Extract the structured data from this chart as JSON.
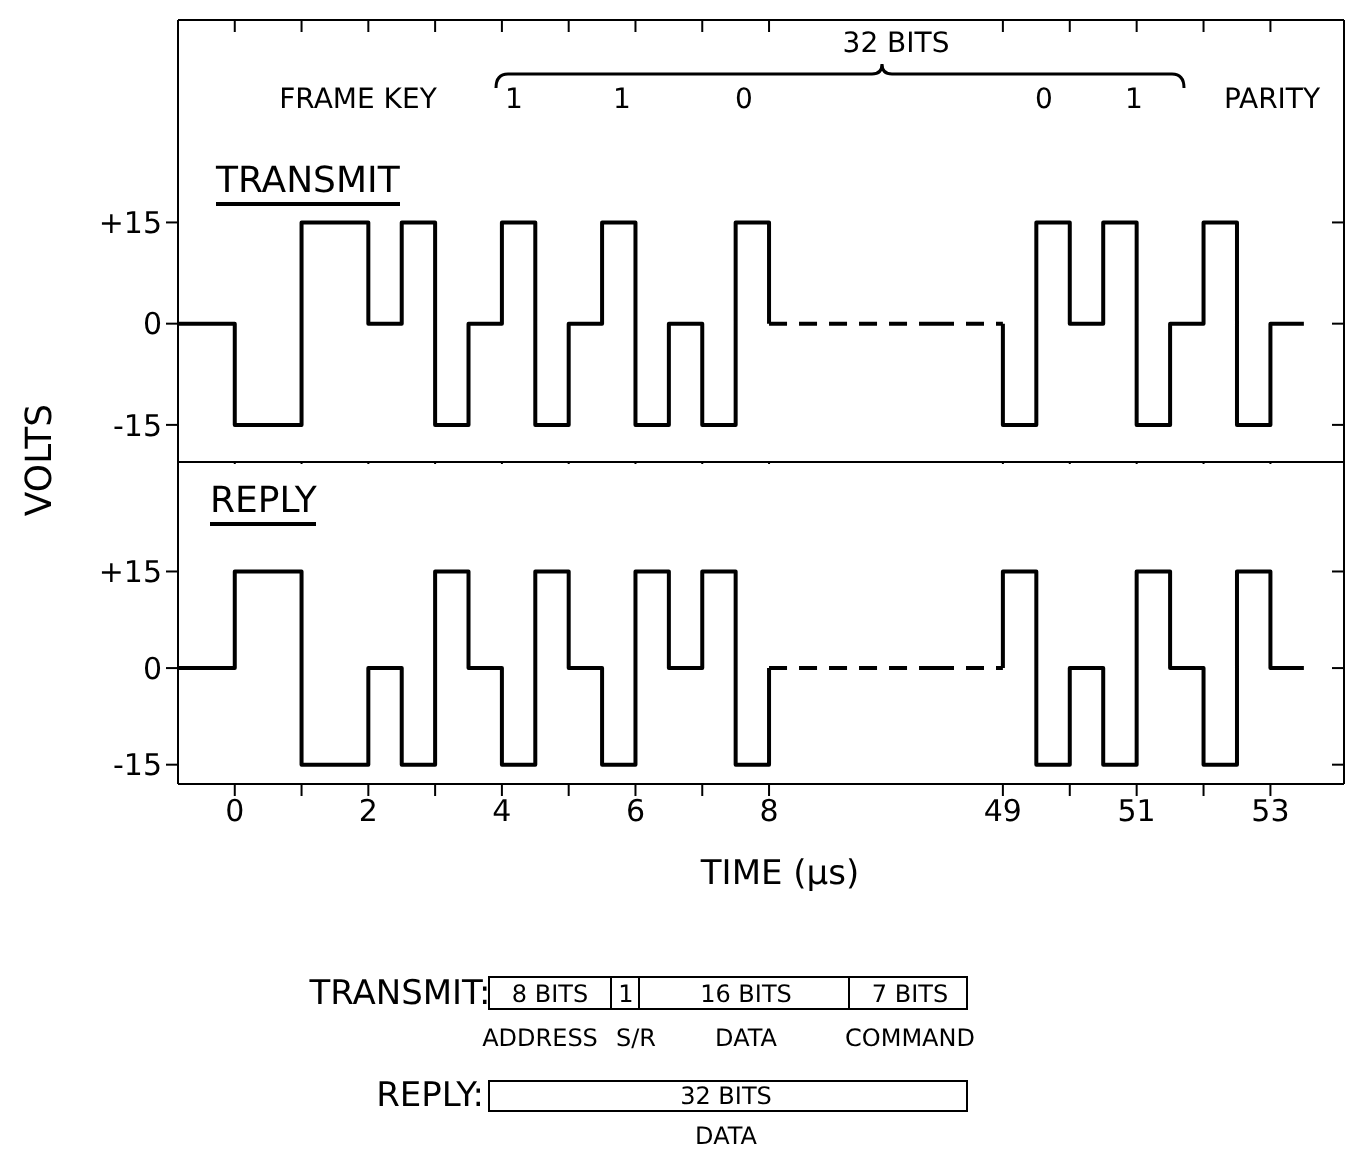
{
  "chart_data": [
    {
      "type": "step",
      "title": "TRANSMIT",
      "ylabel": "VOLTS",
      "annotations": [
        "FRAME KEY",
        "32 BITS",
        "1",
        "1",
        "0"
      ],
      "xlim": [
        -0.85,
        10.5
      ],
      "xticks": [
        0,
        {
          "value": 1,
          "label": null
        },
        2,
        {
          "value": 3,
          "label": null
        },
        4,
        {
          "value": 5,
          "label": null
        },
        6,
        {
          "value": 7,
          "label": null
        },
        8
      ],
      "ylim": [
        -20.5,
        45
      ],
      "yticks": [
        -15,
        0,
        {
          "value": 15,
          "label": "+15"
        }
      ],
      "tick_labels": "y",
      "series": [
        {
          "color": "#000000",
          "x": [
            -0.85,
            0,
            1,
            2,
            2.5,
            3,
            3.5,
            4,
            4.5,
            5,
            5.5,
            6,
            6.5,
            7,
            7.5,
            8
          ],
          "values": [
            0,
            -15,
            15,
            0,
            15,
            -15,
            0,
            15,
            -15,
            0,
            15,
            -15,
            0,
            -15,
            15,
            0
          ]
        },
        {
          "color": "#000000",
          "line_style": "dashed",
          "x": [
            8,
            10.5
          ],
          "values": [
            0,
            0
          ]
        }
      ]
    },
    {
      "type": "step",
      "annotations": [
        "0",
        "1",
        "PARITY"
      ],
      "xlim": [
        48,
        54.1
      ],
      "xticks": [
        49,
        {
          "value": 50,
          "label": null
        },
        51,
        {
          "value": 52,
          "label": null
        },
        53
      ],
      "ylim": [
        -20.5,
        45
      ],
      "yticks": [
        -15,
        0,
        15
      ],
      "tick_labels": false,
      "series": [
        {
          "color": "#000000",
          "line_style": "dashed",
          "x": [
            48,
            49
          ],
          "values": [
            0,
            0
          ]
        },
        {
          "color": "#000000",
          "x": [
            49,
            49,
            49.5,
            50,
            50.5,
            51,
            51.5,
            52,
            52.5,
            53,
            53.5
          ],
          "values": [
            0,
            -15,
            15,
            0,
            15,
            -15,
            0,
            15,
            -15,
            0,
            0
          ]
        }
      ]
    },
    {
      "type": "step",
      "title": "REPLY",
      "xlabel": "TIME (µs)",
      "xlim": [
        -0.85,
        10.5
      ],
      "xticks": [
        0,
        {
          "value": 1,
          "label": null
        },
        2,
        {
          "value": 3,
          "label": null
        },
        4,
        {
          "value": 5,
          "label": null
        },
        6,
        {
          "value": 7,
          "label": null
        },
        8
      ],
      "ylim": [
        -18,
        32
      ],
      "yticks": [
        -15,
        0,
        {
          "value": 15,
          "label": "+15"
        }
      ],
      "series": [
        {
          "color": "#000000",
          "x": [
            -0.85,
            0,
            1,
            2,
            2.5,
            3,
            3.5,
            4,
            4.5,
            5,
            5.5,
            6,
            6.5,
            7,
            7.5,
            8
          ],
          "values": [
            0,
            15,
            -15,
            0,
            -15,
            15,
            0,
            -15,
            15,
            0,
            -15,
            15,
            0,
            15,
            -15,
            0
          ]
        },
        {
          "color": "#000000",
          "line_style": "dashed",
          "x": [
            8,
            10.5
          ],
          "values": [
            0,
            0
          ]
        }
      ]
    },
    {
      "type": "step",
      "xlim": [
        48,
        54.1
      ],
      "xticks": [
        49,
        {
          "value": 50,
          "label": null
        },
        51,
        {
          "value": 52,
          "label": null
        },
        53
      ],
      "ylim": [
        -18,
        32
      ],
      "yticks": [
        -15,
        0,
        15
      ],
      "tick_labels": "x",
      "series": [
        {
          "color": "#000000",
          "line_style": "dashed",
          "x": [
            48,
            49
          ],
          "values": [
            0,
            0
          ]
        },
        {
          "color": "#000000",
          "x": [
            49,
            49,
            49.5,
            50,
            50.5,
            51,
            51.5,
            52,
            52.5,
            53,
            53.5
          ],
          "values": [
            0,
            15,
            -15,
            0,
            -15,
            15,
            0,
            -15,
            15,
            0,
            0
          ]
        }
      ]
    },
    {
      "type": "other",
      "annotations": [
        "TRANSMIT:",
        "8 BITS",
        "1",
        "16 BITS",
        "7 BITS",
        "ADDRESS",
        "S/R",
        "DATA",
        "COMMAND",
        "REPLY:",
        "32 BITS",
        "DATA"
      ]
    }
  ]
}
